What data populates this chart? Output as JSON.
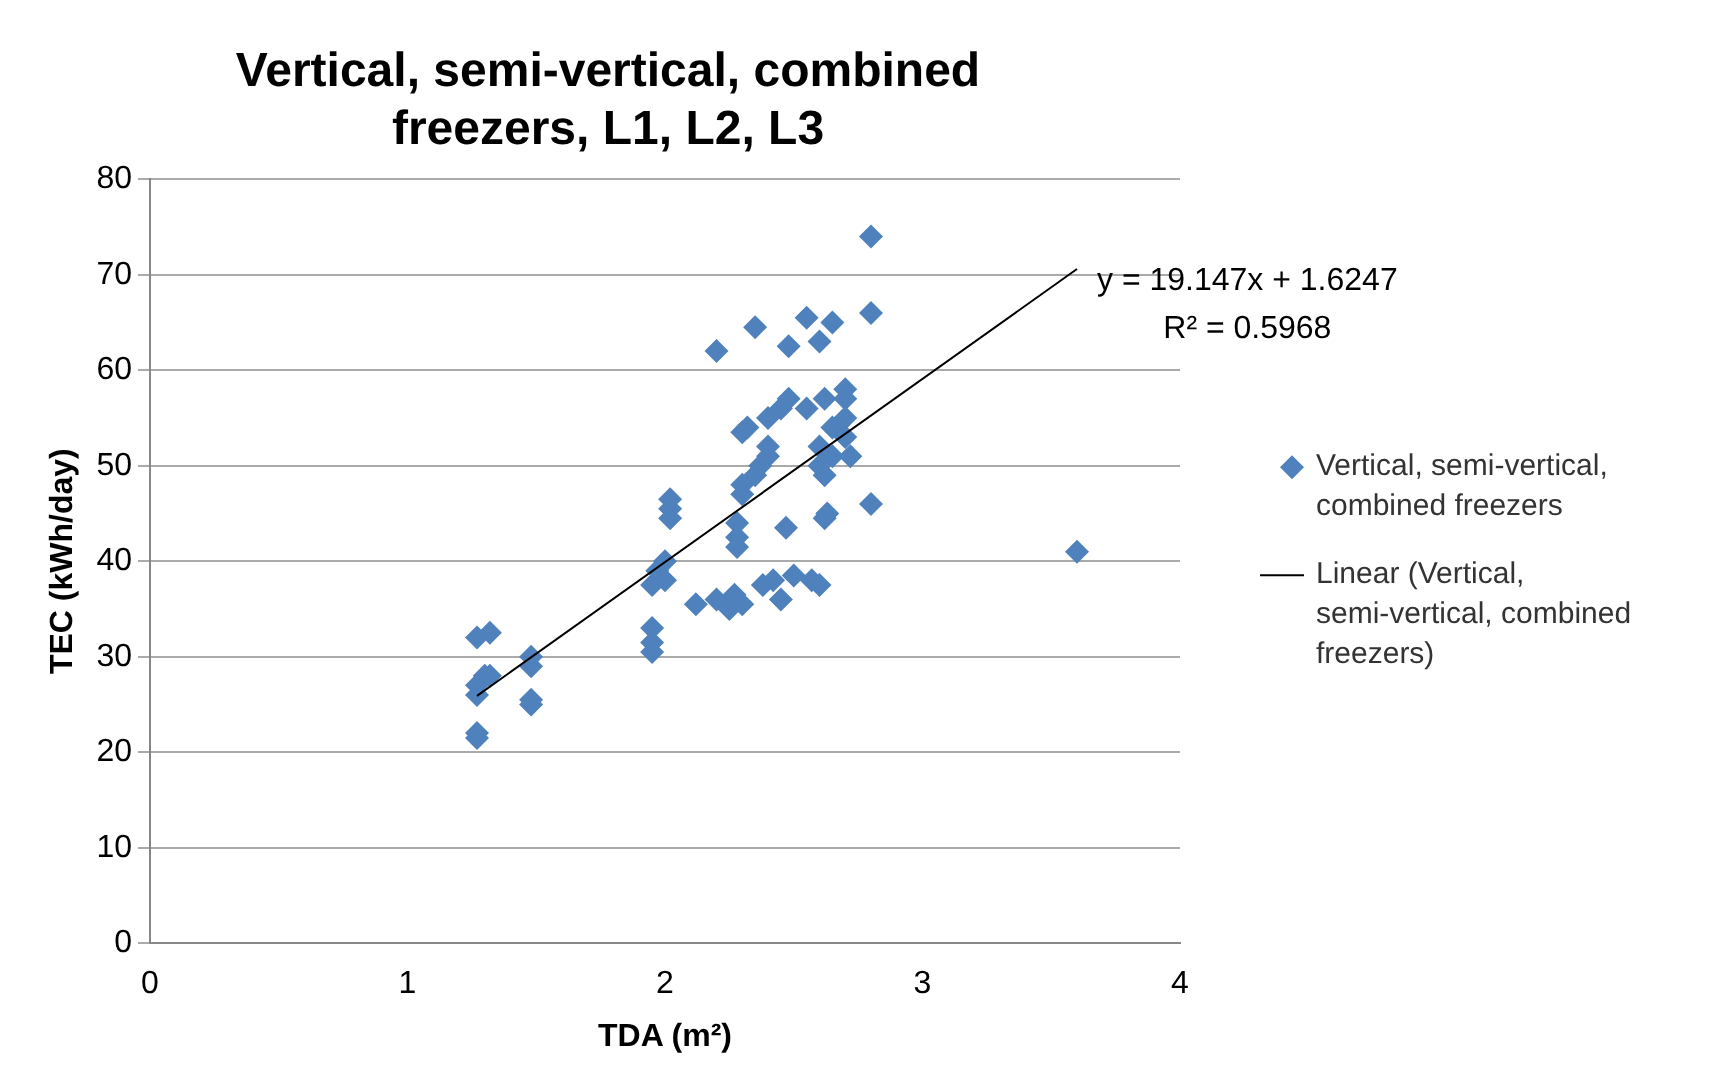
{
  "chart_data": {
    "type": "scatter",
    "title": "Vertical, semi-vertical, combined freezers, L1, L2, L3",
    "xlabel": "TDA (m²)",
    "ylabel": "TEC (kWh/day)",
    "xlim": [
      0,
      4
    ],
    "xticks": [
      0,
      1,
      2,
      3,
      4
    ],
    "ylim": [
      0,
      80
    ],
    "yticks": [
      0,
      10,
      20,
      30,
      40,
      50,
      60,
      70,
      80
    ],
    "grid": "y",
    "legend": "right",
    "marker": "diamond",
    "annotations": [
      "y = 19.147x + 1.6247",
      "R² = 0.5968"
    ],
    "series": [
      {
        "name": "Vertical, semi-vertical, combined freezers",
        "type": "scatter",
        "color": "#4f81bd",
        "x": [
          1.27,
          1.27,
          1.27,
          1.27,
          1.27,
          1.3,
          1.32,
          1.32,
          1.48,
          1.48,
          1.48,
          1.48,
          1.95,
          1.95,
          1.95,
          1.95,
          1.97,
          2.0,
          2.0,
          2.02,
          2.02,
          2.02,
          2.12,
          2.2,
          2.2,
          2.25,
          2.27,
          2.28,
          2.28,
          2.28,
          2.3,
          2.3,
          2.3,
          2.3,
          2.32,
          2.35,
          2.35,
          2.37,
          2.38,
          2.4,
          2.4,
          2.4,
          2.42,
          2.45,
          2.45,
          2.47,
          2.48,
          2.48,
          2.5,
          2.55,
          2.55,
          2.57,
          2.6,
          2.6,
          2.6,
          2.6,
          2.62,
          2.62,
          2.62,
          2.63,
          2.65,
          2.65,
          2.65,
          2.7,
          2.7,
          2.7,
          2.7,
          2.72,
          2.8,
          2.8,
          2.8,
          3.6
        ],
        "values": [
          22,
          21.5,
          26,
          27,
          32,
          28,
          28,
          32.5,
          25,
          25.5,
          29,
          30,
          30.5,
          31.5,
          33,
          37.5,
          39,
          38,
          40,
          44.5,
          45.5,
          46.5,
          35.5,
          62,
          36,
          35,
          36.5,
          41.5,
          42.5,
          44,
          47,
          48,
          53.5,
          35.5,
          54,
          64.5,
          49,
          50,
          37.5,
          51,
          52,
          55,
          38,
          56,
          36,
          43.5,
          57,
          62.5,
          38.5,
          56,
          65.5,
          38,
          63,
          52,
          50,
          37.5,
          49,
          44.5,
          57,
          45,
          65,
          54,
          51,
          58,
          57,
          55,
          53,
          51,
          74,
          66,
          46,
          41
        ]
      },
      {
        "name": "Linear (Vertical, semi-vertical, combined freezers)",
        "type": "line",
        "color": "#000000",
        "marker": "none",
        "x": [
          1.27,
          3.6
        ],
        "values": [
          25.9,
          70.6
        ]
      }
    ]
  }
}
